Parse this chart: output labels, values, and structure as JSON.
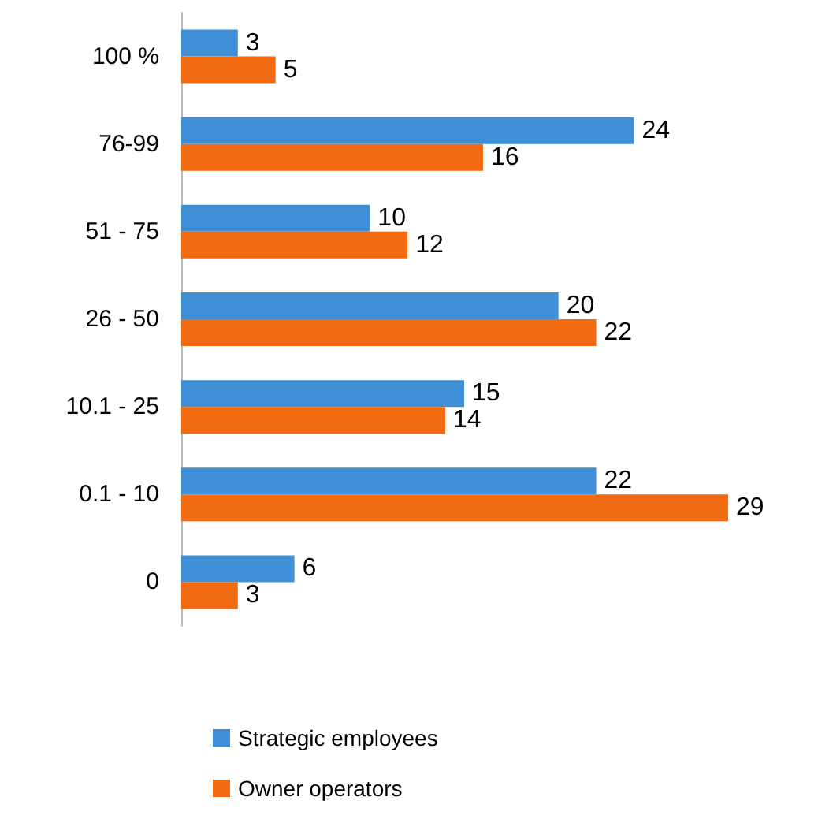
{
  "chart_data": {
    "type": "bar",
    "orientation": "horizontal",
    "categories": [
      "100 %",
      "76-99",
      "51 - 75",
      "26 - 50",
      "10.1 - 25",
      "0.1 - 10",
      "0"
    ],
    "series": [
      {
        "name": "Strategic employees",
        "color": "#3f8fd6",
        "values": [
          3,
          24,
          10,
          20,
          15,
          22,
          6
        ]
      },
      {
        "name": "Owner operators",
        "color": "#f26a12",
        "values": [
          5,
          16,
          12,
          22,
          14,
          29,
          3
        ]
      }
    ],
    "data_labels": true,
    "legend": "bottom"
  }
}
